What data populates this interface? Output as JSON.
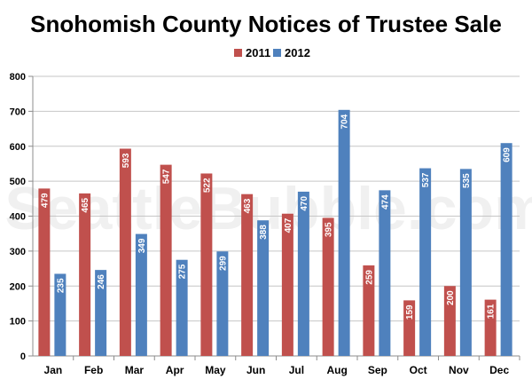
{
  "chart_data": {
    "type": "bar",
    "title": "Snohomish County Notices of Trustee Sale",
    "xlabel": "",
    "ylabel": "",
    "categories": [
      "Jan",
      "Feb",
      "Mar",
      "Apr",
      "May",
      "Jun",
      "Jul",
      "Aug",
      "Sep",
      "Oct",
      "Nov",
      "Dec"
    ],
    "series": [
      {
        "name": "2011",
        "color": "#c0504d",
        "values": [
          479,
          465,
          593,
          547,
          522,
          463,
          407,
          395,
          259,
          159,
          200,
          161
        ]
      },
      {
        "name": "2012",
        "color": "#4f81bd",
        "values": [
          235,
          246,
          349,
          275,
          299,
          388,
          470,
          704,
          474,
          537,
          535,
          609
        ]
      }
    ],
    "ylim": [
      0,
      800
    ],
    "yticks": [
      0,
      100,
      200,
      300,
      400,
      500,
      600,
      700,
      800
    ],
    "grid": true,
    "legend_position": "top-center",
    "data_labels": "inside-top-rotated",
    "watermark": "SeattleBubble.com"
  }
}
